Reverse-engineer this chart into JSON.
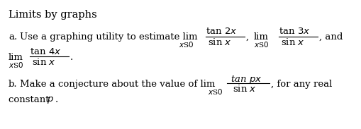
{
  "title": "Limits by graphs",
  "bg": "#ffffff",
  "tc": "#000000",
  "fig_w": 5.09,
  "fig_h": 1.83,
  "dpi": 100,
  "fs": 9.5,
  "fs_sub": 7.5,
  "fs_title": 10.5
}
